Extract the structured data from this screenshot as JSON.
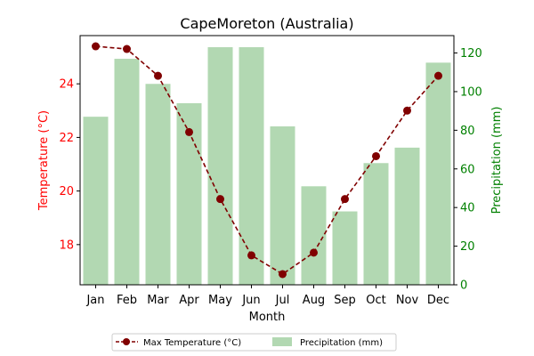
{
  "chart_data": {
    "type": "bar+line",
    "title": "CapeMoreton (Australia)",
    "xlabel": "Month",
    "ylabel_left": "Temperature (°C)",
    "ylabel_right": "Precipitation (mm)",
    "categories": [
      "Jan",
      "Feb",
      "Mar",
      "Apr",
      "May",
      "Jun",
      "Jul",
      "Aug",
      "Sep",
      "Oct",
      "Nov",
      "Dec"
    ],
    "series": [
      {
        "name": "Max Temperature (°C)",
        "kind": "line",
        "axis": "left",
        "color": "#800000",
        "values": [
          25.4,
          25.3,
          24.3,
          22.2,
          19.7,
          17.6,
          16.9,
          17.7,
          19.7,
          21.3,
          23.0,
          24.3
        ]
      },
      {
        "name": "Precipitation (mm)",
        "kind": "bar",
        "axis": "right",
        "color": "#b2d8b2",
        "values": [
          87,
          117,
          104,
          94,
          123,
          123,
          82,
          51,
          38,
          63,
          71,
          115
        ]
      }
    ],
    "ylim_left": [
      16.5,
      25.8
    ],
    "ylim_right": [
      0,
      129
    ],
    "yticks_left": [
      18,
      20,
      22,
      24
    ],
    "yticks_right": [
      0,
      20,
      40,
      60,
      80,
      100,
      120
    ],
    "left_axis_color": "#ff0000",
    "right_axis_color": "#008000",
    "legend_placement": "bottom-center",
    "grid": false
  }
}
